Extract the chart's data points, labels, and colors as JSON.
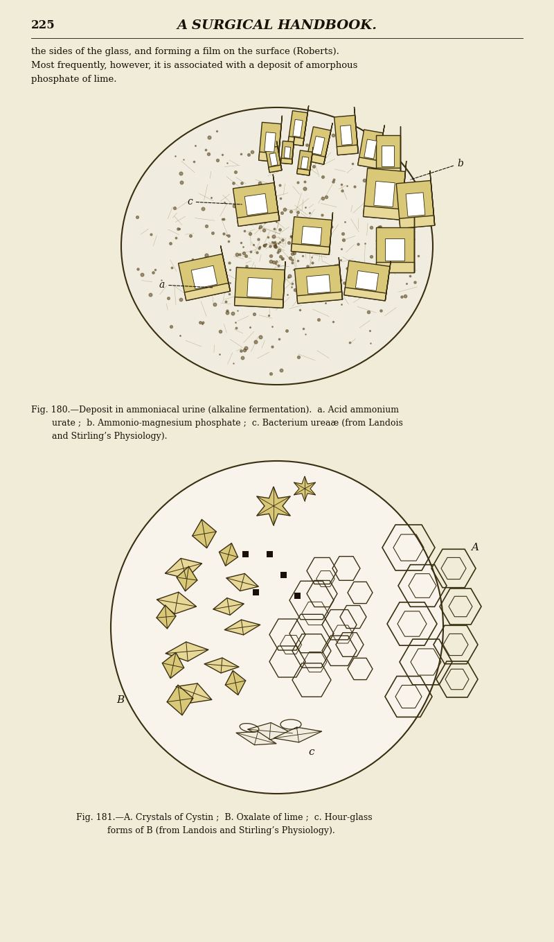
{
  "bg_color": "#f0ecd8",
  "page_number": "225",
  "header_title": "A SURGICAL HANDBOOK.",
  "body_text_line1": "the sides of the glass, and forming a film on the surface (Roberts).",
  "body_text_line2": "Most frequently, however, it is associated with a deposit of amorphous",
  "body_text_line3": "phosphate of lime.",
  "fig180_caption_line1": "Fig. 180.—Deposit in ammoniacal urine (alkaline fermentation).  a. Acid ammonium",
  "fig180_caption_line2": "urate ;  b. Ammonio-magnesium phosphate ;  c. Bacterium ureaæ (from Landois",
  "fig180_caption_line3": "and Stirling’s Physiology).",
  "fig181_caption_line1": "Fig. 181.—A. Crystals of Cystin ;  B. Oxalate of lime ;  c. Hour-glass",
  "fig181_caption_line2": "forms of B (from Landois and Stirling’s Physiology).",
  "figsize": [
    8.0,
    13.59
  ],
  "dpi": 100
}
